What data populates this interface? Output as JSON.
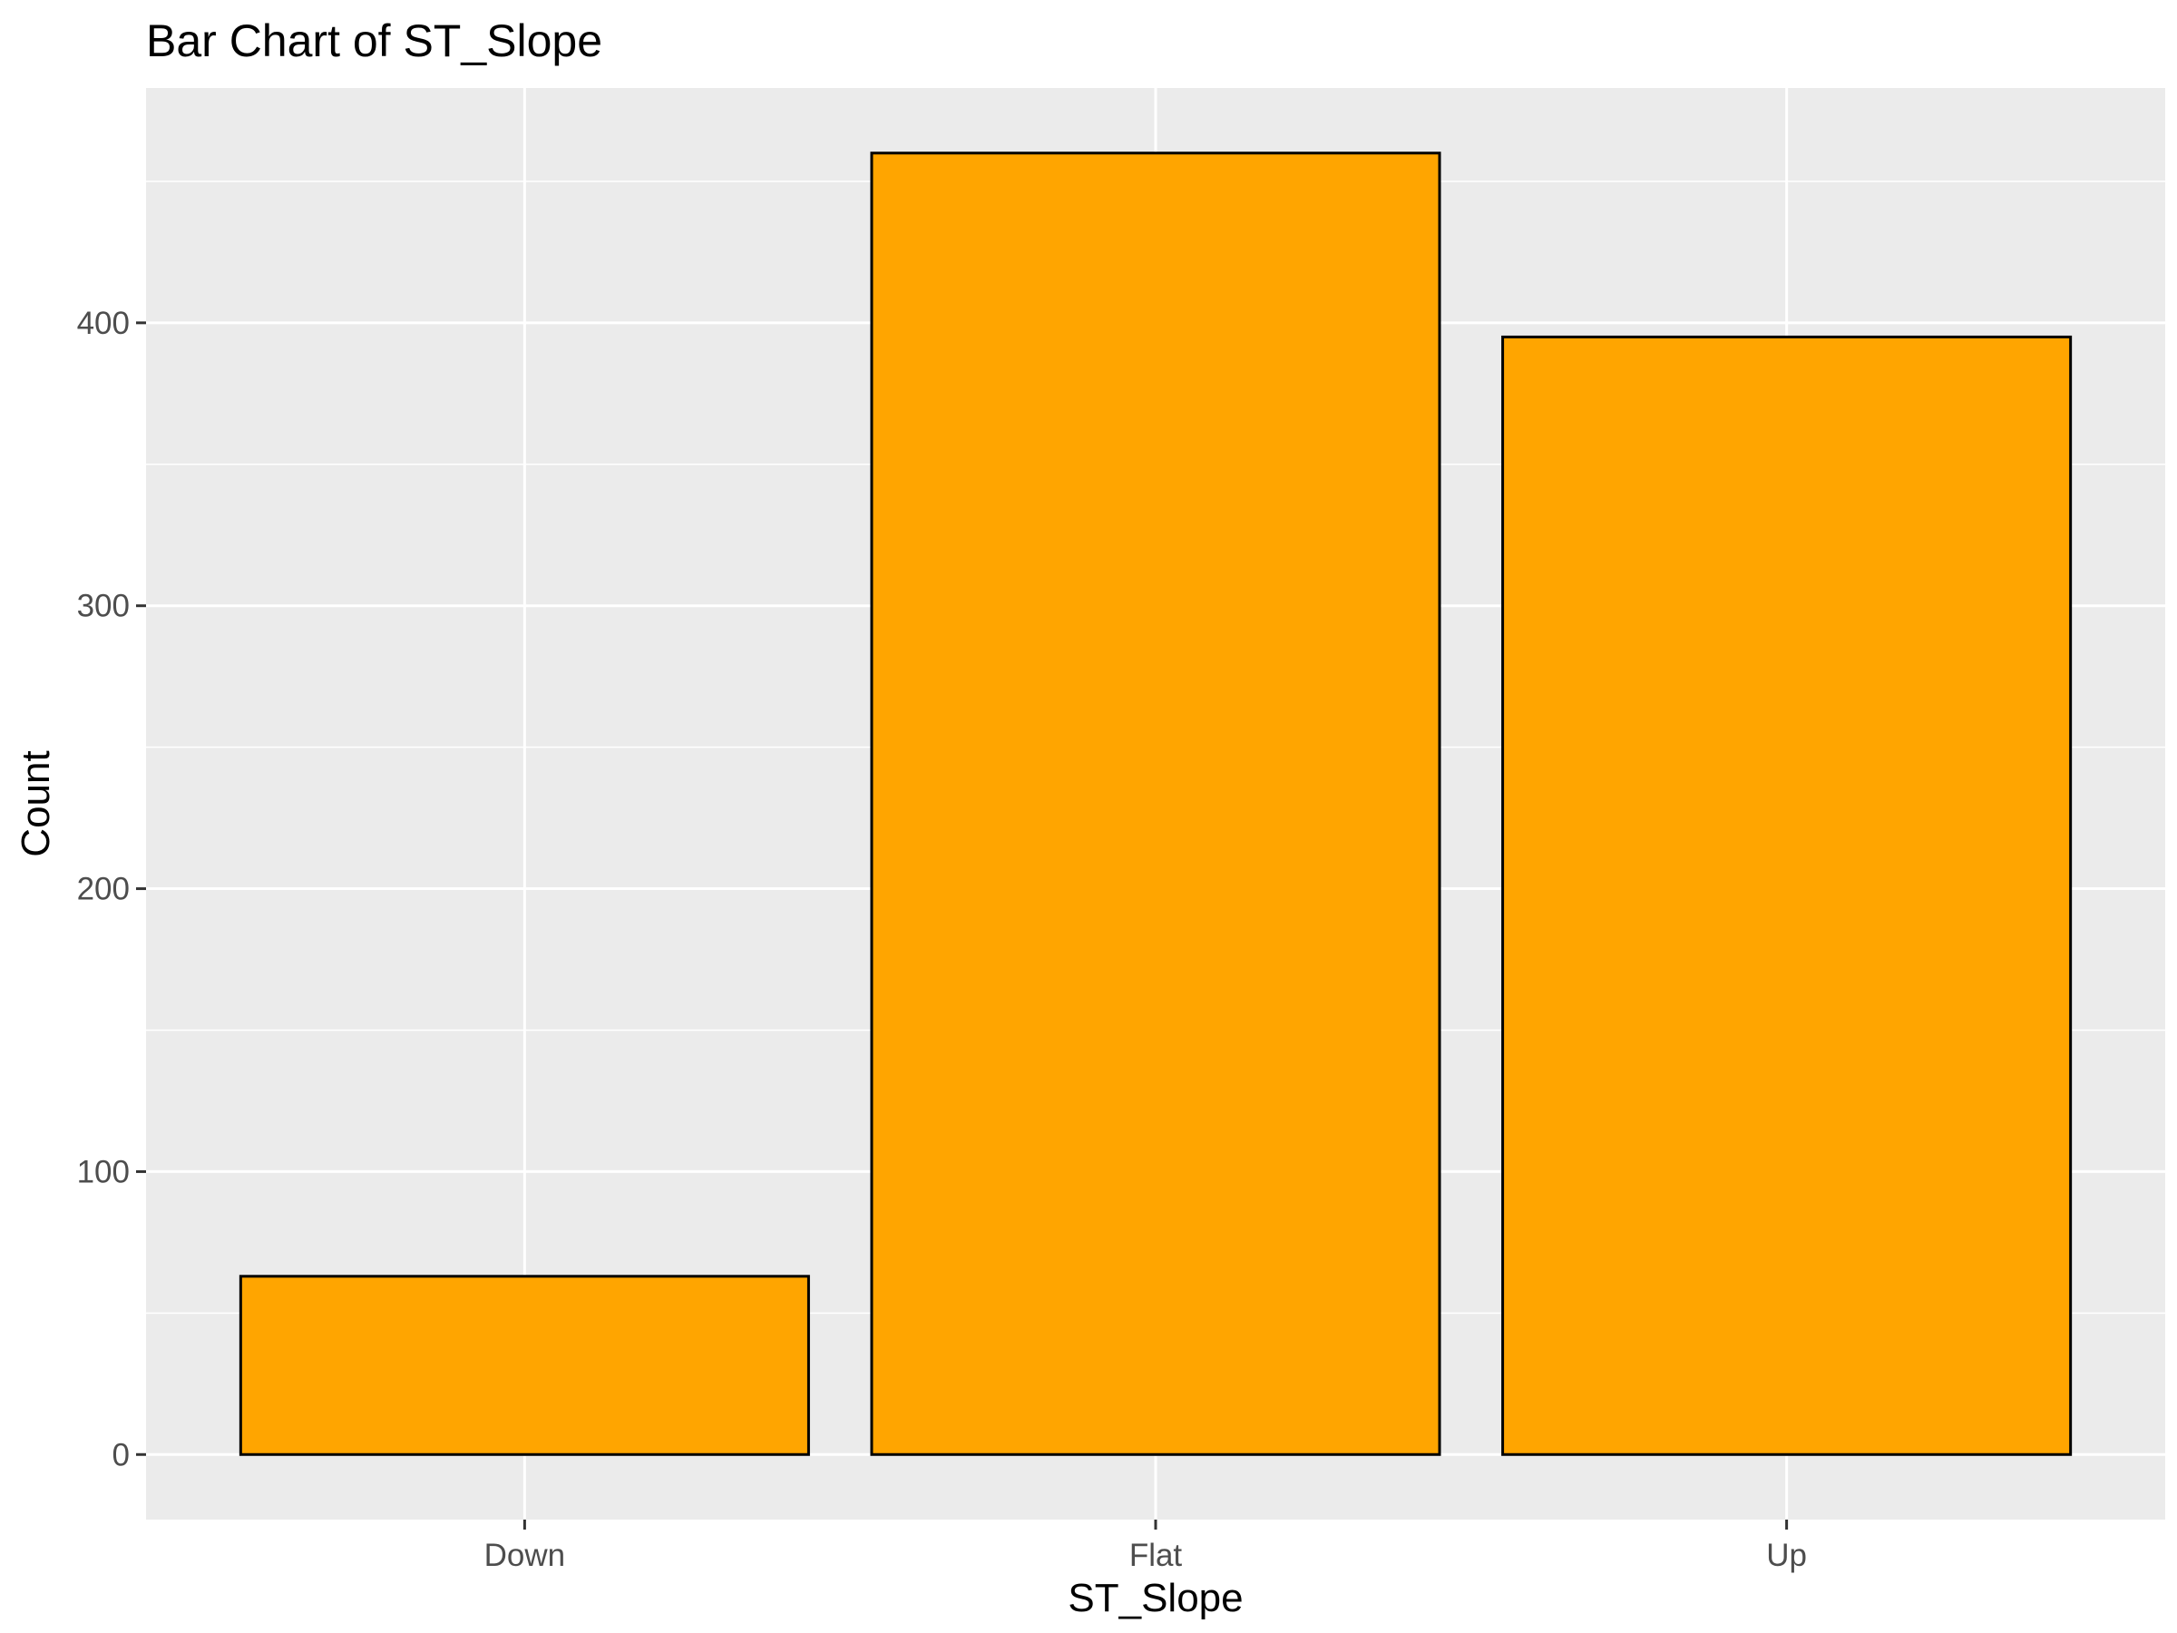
{
  "chart_data": {
    "type": "bar",
    "title": "Bar Chart of ST_Slope",
    "xlabel": "ST_Slope",
    "ylabel": "Count",
    "categories": [
      "Down",
      "Flat",
      "Up"
    ],
    "values": [
      63,
      460,
      395
    ],
    "yticks": [
      0,
      100,
      200,
      300,
      400
    ],
    "ylim": [
      -23,
      483
    ],
    "grid": true,
    "legend": "none",
    "colors": {
      "bar_fill": "#FFA500",
      "bar_stroke": "#000000",
      "panel_background": "#EBEBEB",
      "grid": "#FFFFFF",
      "tick_label": "#4D4D4D",
      "tick_mark": "#333333"
    }
  }
}
